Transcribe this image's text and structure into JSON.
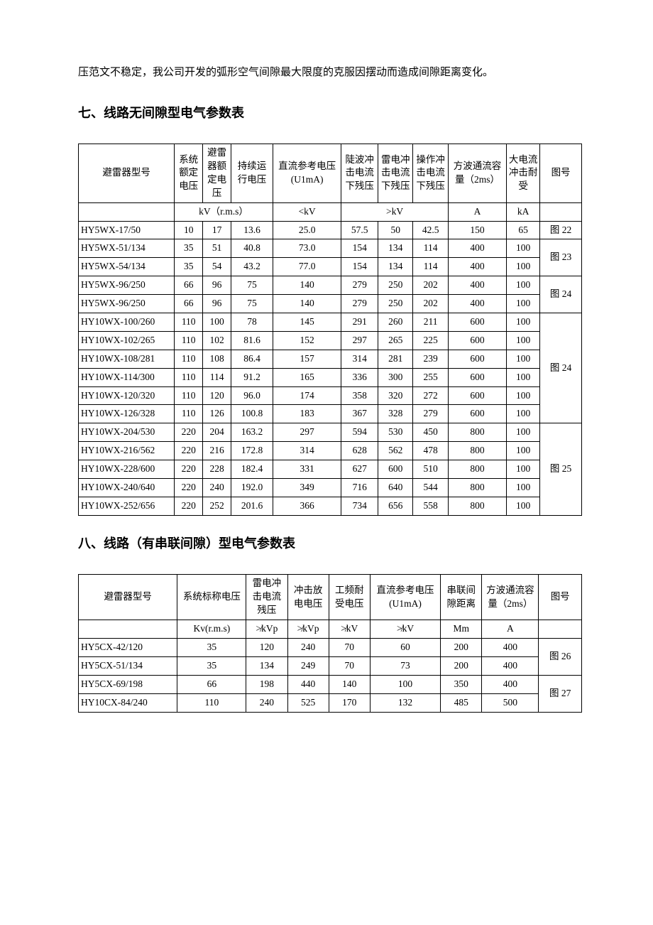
{
  "intro_text": "压范文不稳定，我公司开发的弧形空气间隙最大限度的克服因摆动而造成间隙距离变化。",
  "section1": {
    "title": "七、线路无间隙型电气参数表",
    "headers": {
      "model": "避雷器型号",
      "sys_v": "系统额定电压",
      "arr_v": "避雷器额定电压",
      "cont_v": "持续运行电压",
      "dc_ref": "直流参考电压(U1mA)",
      "steep": "陡波冲击电流下残压",
      "lightning": "雷电冲击电流下残压",
      "switch": "操作冲击电流下残压",
      "square": "方波通流容量（2ms）",
      "high_cur": "大电流冲击耐受",
      "fig": "图号"
    },
    "units": {
      "u1": "kV（r.m.s）",
      "u2": "<kV",
      "u3": ">kV",
      "u4": "A",
      "u5": "kA"
    },
    "rows": [
      {
        "m": "HY5WX-17/50",
        "v": [
          "10",
          "17",
          "13.6",
          "25.0",
          "57.5",
          "50",
          "42.5",
          "150",
          "65"
        ],
        "fig": "图 22",
        "figspan": 1
      },
      {
        "m": "HY5WX-51/134",
        "v": [
          "35",
          "51",
          "40.8",
          "73.0",
          "154",
          "134",
          "114",
          "400",
          "100"
        ],
        "fig": "图 23",
        "figspan": 2
      },
      {
        "m": "HY5WX-54/134",
        "v": [
          "35",
          "54",
          "43.2",
          "77.0",
          "154",
          "134",
          "114",
          "400",
          "100"
        ]
      },
      {
        "m": "HY5WX-96/250",
        "v": [
          "66",
          "96",
          "75",
          "140",
          "279",
          "250",
          "202",
          "400",
          "100"
        ],
        "fig": "图 24",
        "figspan": 2
      },
      {
        "m": "HY5WX-96/250",
        "v": [
          "66",
          "96",
          "75",
          "140",
          "279",
          "250",
          "202",
          "400",
          "100"
        ]
      },
      {
        "m": "HY10WX-100/260",
        "v": [
          "110",
          "100",
          "78",
          "145",
          "291",
          "260",
          "211",
          "600",
          "100"
        ],
        "fig": "图 24",
        "figspan": 6
      },
      {
        "m": "HY10WX-102/265",
        "v": [
          "110",
          "102",
          "81.6",
          "152",
          "297",
          "265",
          "225",
          "600",
          "100"
        ]
      },
      {
        "m": "HY10WX-108/281",
        "v": [
          "110",
          "108",
          "86.4",
          "157",
          "314",
          "281",
          "239",
          "600",
          "100"
        ]
      },
      {
        "m": "HY10WX-114/300",
        "v": [
          "110",
          "114",
          "91.2",
          "165",
          "336",
          "300",
          "255",
          "600",
          "100"
        ]
      },
      {
        "m": "HY10WX-120/320",
        "v": [
          "110",
          "120",
          "96.0",
          "174",
          "358",
          "320",
          "272",
          "600",
          "100"
        ]
      },
      {
        "m": "HY10WX-126/328",
        "v": [
          "110",
          "126",
          "100.8",
          "183",
          "367",
          "328",
          "279",
          "600",
          "100"
        ]
      },
      {
        "m": "HY10WX-204/530",
        "v": [
          "220",
          "204",
          "163.2",
          "297",
          "594",
          "530",
          "450",
          "800",
          "100"
        ],
        "fig": "图 25",
        "figspan": 5
      },
      {
        "m": "HY10WX-216/562",
        "v": [
          "220",
          "216",
          "172.8",
          "314",
          "628",
          "562",
          "478",
          "800",
          "100"
        ]
      },
      {
        "m": "HY10WX-228/600",
        "v": [
          "220",
          "228",
          "182.4",
          "331",
          "627",
          "600",
          "510",
          "800",
          "100"
        ]
      },
      {
        "m": "HY10WX-240/640",
        "v": [
          "220",
          "240",
          "192.0",
          "349",
          "716",
          "640",
          "544",
          "800",
          "100"
        ]
      },
      {
        "m": "HY10WX-252/656",
        "v": [
          "220",
          "252",
          "201.6",
          "366",
          "734",
          "656",
          "558",
          "800",
          "100"
        ]
      }
    ]
  },
  "section2": {
    "title": "八、线路（有串联间隙）型电气参数表",
    "headers": {
      "model": "避雷器型号",
      "sys_v": "系统标称电压",
      "lightning": "雷电冲击电流残压",
      "impulse": "冲击放电电压",
      "pf_with": "工频耐受电压",
      "dc_ref": "直流参考电压(U1mA)",
      "gap": "串联间隙距离",
      "square": "方波通流容量（2ms）",
      "fig": "图号"
    },
    "units": {
      "u1": "Kv(r.m.s)",
      "u2": "≯kVp",
      "u3": "≯kVp",
      "u4": "≯kV",
      "u5": "≯kV",
      "u6": "Mm",
      "u7": "A"
    },
    "rows": [
      {
        "m": "HY5CX-42/120",
        "v": [
          "35",
          "120",
          "240",
          "70",
          "60",
          "200",
          "400"
        ],
        "fig": "图 26",
        "figspan": 2
      },
      {
        "m": "HY5CX-51/134",
        "v": [
          "35",
          "134",
          "249",
          "70",
          "73",
          "200",
          "400"
        ]
      },
      {
        "m": "HY5CX-69/198",
        "v": [
          "66",
          "198",
          "440",
          "140",
          "100",
          "350",
          "400"
        ],
        "fig": "图 27",
        "figspan": 2
      },
      {
        "m": "HY10CX-84/240",
        "v": [
          "110",
          "240",
          "525",
          "170",
          "132",
          "485",
          "500"
        ]
      }
    ]
  }
}
